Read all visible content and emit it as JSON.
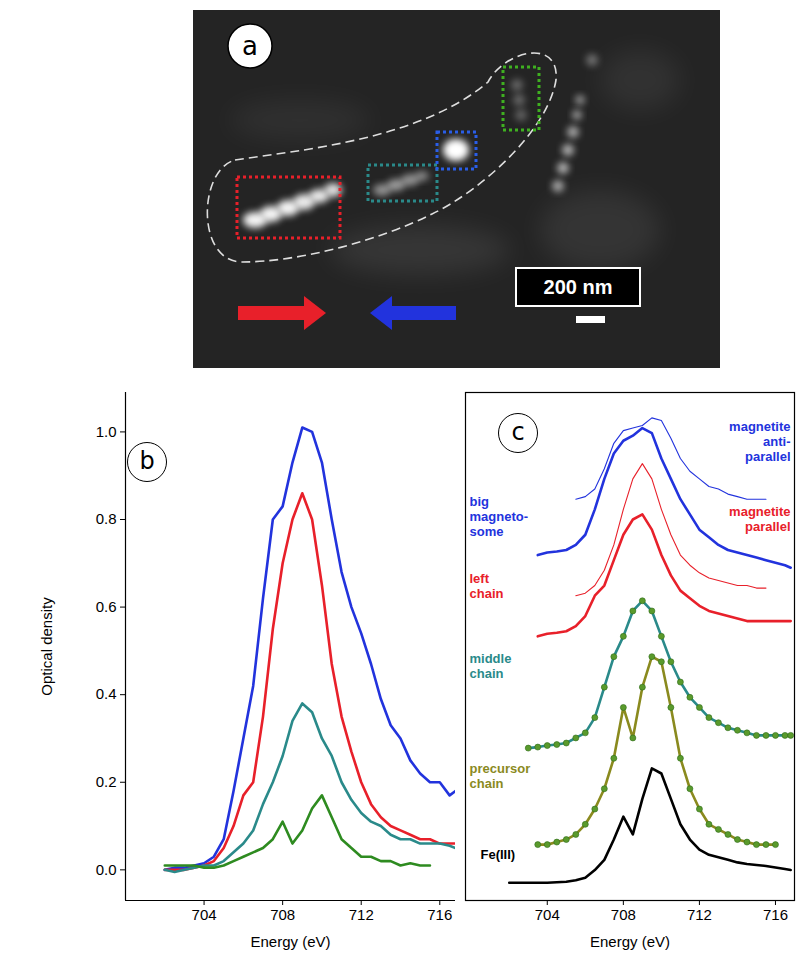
{
  "panel_a": {
    "label": "a",
    "scale_bar": "200 nm"
  },
  "chart_data": [
    {
      "type": "line",
      "panel_label": "b",
      "x_label": "Energy (eV)",
      "y_label": "Optical density",
      "xlim": [
        700,
        716.8
      ],
      "xticks": [
        704,
        708,
        712,
        716
      ],
      "ylim": [
        -0.07,
        1.09
      ],
      "yticks": [
        {
          "value": 0,
          "label": "0.0"
        },
        0.2,
        0.4,
        0.6,
        0.8,
        {
          "value": 1,
          "label": "1.0"
        }
      ],
      "x": [
        702,
        702.5,
        703,
        703.5,
        704,
        704.5,
        705,
        705.5,
        706,
        706.5,
        707,
        707.5,
        708,
        708.5,
        709,
        709.5,
        710,
        710.5,
        711,
        711.5,
        712,
        712.5,
        713,
        713.5,
        714,
        714.5,
        715,
        715.5,
        716,
        716.5,
        716.8
      ],
      "series": [
        {
          "color": "#2233dd",
          "values": [
            0,
            0.005,
            0.005,
            0.01,
            0.015,
            0.03,
            0.07,
            0.18,
            0.3,
            0.42,
            0.62,
            0.8,
            0.83,
            0.93,
            1.01,
            1.0,
            0.93,
            0.8,
            0.68,
            0.6,
            0.54,
            0.47,
            0.39,
            0.33,
            0.3,
            0.25,
            0.22,
            0.2,
            0.2,
            0.17,
            0.18
          ]
        },
        {
          "color": "#e8202a",
          "values": [
            0,
            0,
            0,
            0.005,
            0.01,
            0.02,
            0.05,
            0.1,
            0.17,
            0.2,
            0.35,
            0.55,
            0.7,
            0.8,
            0.86,
            0.8,
            0.65,
            0.47,
            0.35,
            0.27,
            0.2,
            0.15,
            0.12,
            0.1,
            0.09,
            0.08,
            0.07,
            0.07,
            0.06,
            0.06,
            0.06
          ]
        },
        {
          "color": "#2a8a8a",
          "values": [
            0,
            -0.005,
            0,
            0.005,
            0.01,
            0.01,
            0.02,
            0.04,
            0.06,
            0.09,
            0.15,
            0.2,
            0.26,
            0.34,
            0.38,
            0.36,
            0.3,
            0.26,
            0.2,
            0.16,
            0.13,
            0.11,
            0.1,
            0.08,
            0.07,
            0.07,
            0.06,
            0.06,
            0.06,
            0.055,
            0.05
          ]
        },
        {
          "color": "#2e8b20",
          "values": [
            0.01,
            0.01,
            0.01,
            0.01,
            0.005,
            0.005,
            0.01,
            0.02,
            0.03,
            0.04,
            0.05,
            0.07,
            0.11,
            0.06,
            0.09,
            0.14,
            0.17,
            0.12,
            0.07,
            0.05,
            0.03,
            0.03,
            0.02,
            0.02,
            0.01,
            0.015,
            0.01,
            0.01,
            null,
            null,
            null
          ]
        }
      ]
    },
    {
      "type": "line",
      "panel_label": "c",
      "x_label": "Energy (eV)",
      "tick_labels": "x",
      "xlim": [
        699.7,
        717
      ],
      "xticks": [
        704,
        708,
        712,
        716
      ],
      "ylim": [
        0,
        1
      ],
      "x": [
        702,
        702.5,
        703,
        703.5,
        704,
        704.5,
        705,
        705.5,
        706,
        706.5,
        707,
        707.5,
        708,
        708.5,
        709,
        709.5,
        710,
        710.5,
        711,
        711.5,
        712,
        712.5,
        713,
        713.5,
        714,
        714.5,
        715,
        715.5,
        716,
        716.5,
        716.8
      ],
      "series": [
        {
          "name": "magnetite anti-parallel",
          "color": "#2233dd",
          "line_style": "thin",
          "values": [
            null,
            null,
            null,
            null,
            null,
            null,
            null,
            0.79,
            0.795,
            0.81,
            0.85,
            0.9,
            0.925,
            0.93,
            0.935,
            0.95,
            0.945,
            0.91,
            0.87,
            0.845,
            0.83,
            0.815,
            0.81,
            0.8,
            0.795,
            0.79,
            0.79,
            0.79,
            null,
            null,
            null
          ]
        },
        {
          "name": "big magneto-some",
          "color": "#2233dd",
          "line_style": "thick",
          "values": [
            null,
            null,
            null,
            0.68,
            0.685,
            0.687,
            0.69,
            0.7,
            0.72,
            0.77,
            0.83,
            0.88,
            0.905,
            0.915,
            0.93,
            0.92,
            0.87,
            0.83,
            0.79,
            0.76,
            0.73,
            0.715,
            0.7,
            0.69,
            0.685,
            0.68,
            0.675,
            0.67,
            0.665,
            0.66,
            0.655
          ]
        },
        {
          "name": "magnetite parallel",
          "color": "#e8202a",
          "line_style": "thin",
          "values": [
            null,
            null,
            null,
            null,
            null,
            null,
            null,
            0.6,
            0.605,
            0.62,
            0.65,
            0.7,
            0.77,
            0.83,
            0.86,
            0.83,
            0.77,
            0.72,
            0.68,
            0.66,
            0.645,
            0.635,
            0.63,
            0.625,
            0.62,
            0.62,
            0.615,
            0.615,
            null,
            null,
            null
          ]
        },
        {
          "name": "left chain",
          "color": "#e8202a",
          "line_style": "thick",
          "values": [
            null,
            null,
            null,
            0.52,
            0.525,
            0.527,
            0.53,
            0.54,
            0.56,
            0.6,
            0.62,
            0.67,
            0.72,
            0.75,
            0.76,
            0.73,
            0.68,
            0.64,
            0.61,
            0.595,
            0.58,
            0.57,
            0.565,
            0.56,
            0.555,
            0.55,
            0.55,
            0.55,
            0.55,
            0.55,
            0.55
          ]
        },
        {
          "name": "middle chain",
          "color": "#2a8a8a",
          "line_style": "thick",
          "marker": "circle",
          "values": [
            null,
            null,
            0.3,
            0.302,
            0.305,
            0.307,
            0.31,
            0.32,
            0.33,
            0.36,
            0.42,
            0.48,
            0.52,
            0.57,
            0.59,
            0.57,
            0.52,
            0.47,
            0.43,
            0.4,
            0.38,
            0.36,
            0.35,
            0.34,
            0.335,
            0.33,
            0.325,
            0.325,
            0.325,
            0.325,
            0.325
          ]
        },
        {
          "name": "precursor chain",
          "color": "#8a8a1e",
          "line_style": "thick",
          "marker": "circle",
          "values": [
            null,
            null,
            null,
            0.11,
            0.11,
            0.115,
            0.12,
            0.13,
            0.15,
            0.18,
            0.22,
            0.28,
            0.38,
            0.32,
            0.42,
            0.48,
            0.47,
            0.38,
            0.28,
            0.22,
            0.18,
            0.15,
            0.14,
            0.13,
            0.12,
            0.115,
            0.11,
            0.11,
            0.11,
            null,
            null
          ]
        },
        {
          "name": "Fe(III)",
          "color": "#000000",
          "line_style": "thick",
          "values": [
            0.035,
            0.035,
            0.035,
            0.035,
            0.035,
            0.036,
            0.037,
            0.04,
            0.045,
            0.06,
            0.08,
            0.12,
            0.165,
            0.13,
            0.2,
            0.26,
            0.25,
            0.2,
            0.15,
            0.12,
            0.1,
            0.09,
            0.085,
            0.08,
            0.075,
            0.072,
            0.07,
            0.068,
            0.065,
            0.062,
            0.06
          ]
        }
      ]
    }
  ]
}
